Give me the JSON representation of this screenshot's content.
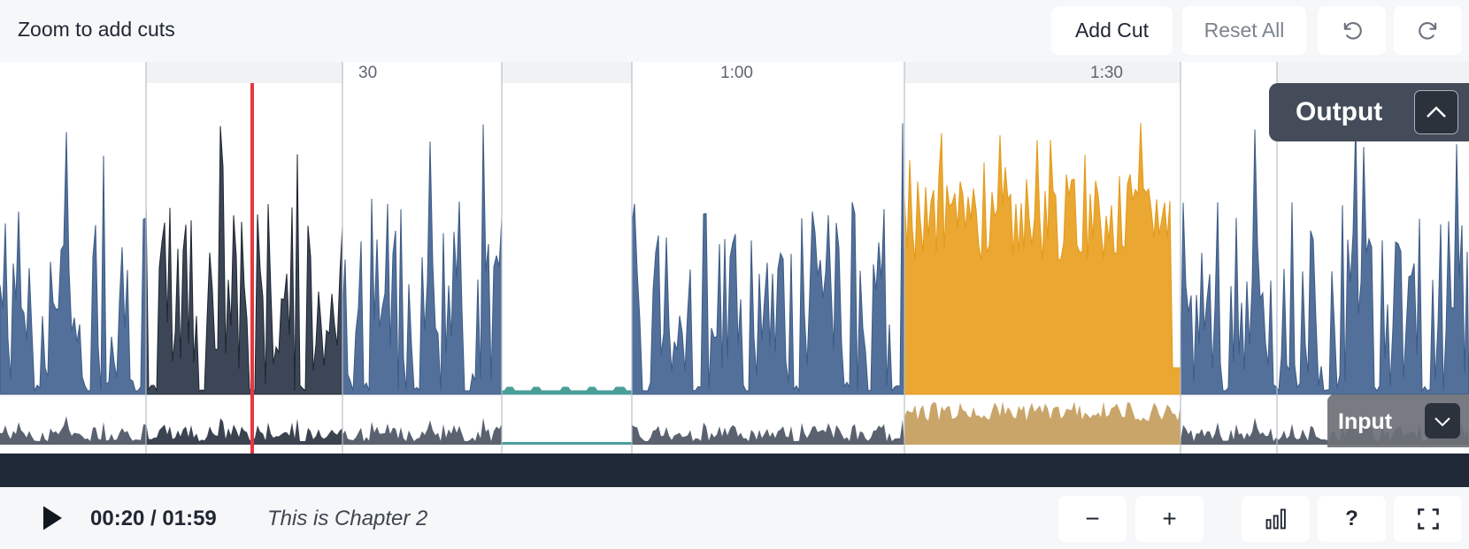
{
  "toolbar": {
    "hint": "Zoom to add cuts",
    "add_cut_label": "Add Cut",
    "reset_all_label": "Reset All",
    "undo_icon": "undo-icon",
    "redo_icon": "redo-icon"
  },
  "timeline": {
    "ticks": [
      "30",
      "1:00",
      "1:30"
    ],
    "output_label": "Output",
    "input_label": "Input"
  },
  "player": {
    "time_display": "00:20 / 01:59",
    "chapter_title": "This is Chapter 2"
  },
  "controls": {
    "zoom_out_label": "−",
    "zoom_in_label": "+",
    "help_label": "?",
    "chart_icon": "bar-chart-icon",
    "fullscreen_icon": "fullscreen-icon"
  },
  "colors": {
    "waveform": "#52709a",
    "selected_segment": "#3c4656",
    "highlight_segment": "#eaa732",
    "silence": "#4a9e98",
    "playhead": "#e8373f",
    "scrollbar": "#1f2938"
  }
}
